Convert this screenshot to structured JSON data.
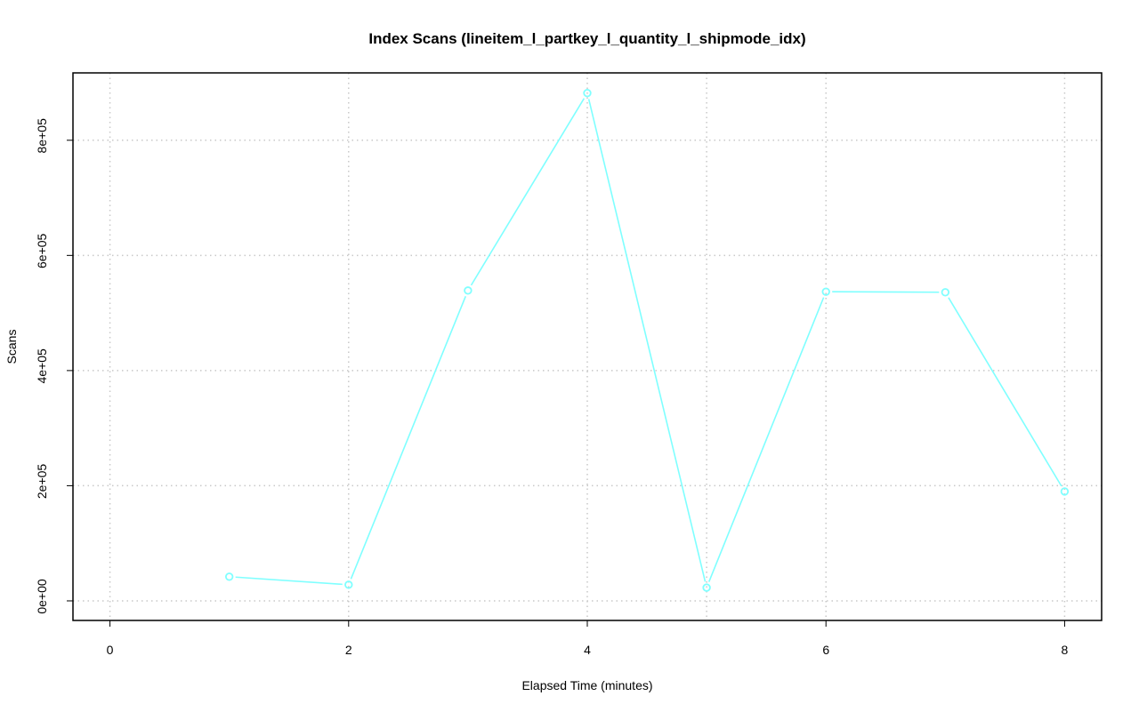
{
  "chart_data": {
    "type": "line",
    "title": "Index Scans (lineitem_l_partkey_l_quantity_l_shipmode_idx)",
    "xlabel": "Elapsed Time (minutes)",
    "ylabel": "Scans",
    "x": [
      1,
      2,
      3,
      4,
      5,
      6,
      7,
      8
    ],
    "values": [
      42000,
      28000,
      539000,
      882000,
      23000,
      537000,
      536000,
      190000
    ],
    "xlim": [
      -0.31,
      8.31
    ],
    "ylim": [
      -34000,
      917000
    ],
    "xticks": [
      0,
      2,
      4,
      6,
      8
    ],
    "xtick_labels": [
      "0",
      "2",
      "4",
      "6",
      "8"
    ],
    "yticks": [
      0,
      200000,
      400000,
      600000,
      800000
    ],
    "ytick_labels": [
      "0e+00",
      "2e+05",
      "4e+05",
      "6e+05",
      "8e+05"
    ],
    "grid": true,
    "grid_xticks": [
      0,
      2,
      4,
      5,
      6,
      8
    ],
    "color": "#7fffff"
  }
}
